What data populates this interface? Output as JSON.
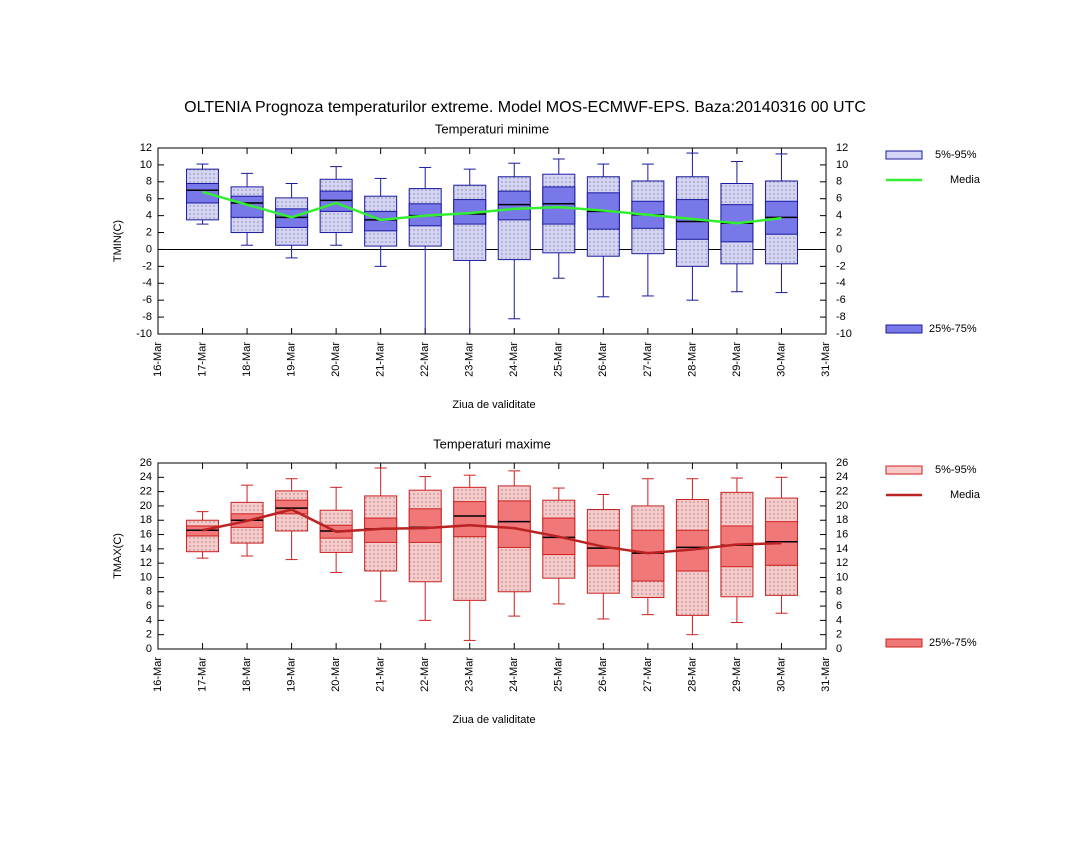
{
  "title": "OLTENIA  Prognoza temperaturilor extreme.  Model MOS-ECMWF-EPS. Baza:20140316 00 UTC",
  "chart_data": [
    {
      "type": "box",
      "subtitle": "Temperaturi minime",
      "subtitle_color": "#1a1aa0",
      "xlabel": "Ziua de validitate",
      "ylabel": "TMIN(C)",
      "categories": [
        "16-Mar",
        "17-Mar",
        "18-Mar",
        "19-Mar",
        "20-Mar",
        "21-Mar",
        "22-Mar",
        "23-Mar",
        "24-Mar",
        "25-Mar",
        "26-Mar",
        "27-Mar",
        "28-Mar",
        "29-Mar",
        "30-Mar",
        "31-Mar"
      ],
      "ylim": [
        -10,
        12
      ],
      "yticks": [
        -10,
        -8,
        -6,
        -4,
        -2,
        0,
        2,
        4,
        6,
        8,
        10,
        12
      ],
      "zero_line": true,
      "whisker_color": "#1a1aa0",
      "min": [
        null,
        3,
        0.5,
        -1,
        0.5,
        -2,
        -10,
        -10,
        -8.2,
        -3.4,
        -5.6,
        -5.5,
        -6,
        -5,
        -5.1,
        null
      ],
      "max": [
        null,
        10.1,
        9,
        7.8,
        9.8,
        8.4,
        9.7,
        9.5,
        10.2,
        10.7,
        10.1,
        10.1,
        11.4,
        10.4,
        11.3,
        null
      ],
      "median": [
        null,
        7,
        5.5,
        3.8,
        5.8,
        3.5,
        4,
        4.2,
        5.3,
        5.4,
        4.5,
        4.1,
        3.3,
        3.1,
        3.8,
        null
      ],
      "series": [
        {
          "name": "5%-95%",
          "color": "#d4d4f6",
          "stroke": "#1a1aa0",
          "low": [
            null,
            3.5,
            2,
            0.5,
            2,
            0.4,
            0.4,
            -1.3,
            -1.2,
            -0.4,
            -0.8,
            -0.5,
            -2,
            -1.7,
            -1.7,
            null
          ],
          "high": [
            null,
            9.5,
            7.4,
            6.1,
            8.3,
            6.3,
            7.2,
            7.6,
            8.6,
            8.9,
            8.6,
            8.1,
            8.6,
            7.8,
            8.1,
            null
          ]
        },
        {
          "name": "25%-75%",
          "color": "#7878e8",
          "stroke": "#1a1aa0",
          "low": [
            null,
            5.5,
            3.8,
            2.6,
            4.5,
            2.2,
            2.8,
            3,
            3.5,
            3,
            2.4,
            2.5,
            1.2,
            0.9,
            1.8,
            null
          ],
          "high": [
            null,
            7.8,
            6.3,
            4.8,
            6.9,
            4.5,
            5.4,
            5.9,
            6.9,
            7.4,
            6.7,
            5.7,
            5.9,
            5.3,
            5.7,
            null
          ]
        },
        {
          "name": "Media",
          "color": "#33ee33",
          "values": [
            null,
            6.8,
            5.3,
            3.8,
            5.5,
            3.5,
            4,
            4.3,
            4.8,
            5,
            4.6,
            4.1,
            3.6,
            3.1,
            3.7,
            null
          ]
        }
      ]
    },
    {
      "type": "box",
      "subtitle": "Temperaturi maxime",
      "subtitle_color": "#dd1111",
      "xlabel": "Ziua de validitate",
      "ylabel": "TMAX(C)",
      "categories": [
        "16-Mar",
        "17-Mar",
        "18-Mar",
        "19-Mar",
        "20-Mar",
        "21-Mar",
        "22-Mar",
        "23-Mar",
        "24-Mar",
        "25-Mar",
        "26-Mar",
        "27-Mar",
        "28-Mar",
        "29-Mar",
        "30-Mar",
        "31-Mar"
      ],
      "ylim": [
        0,
        26
      ],
      "yticks": [
        0,
        2,
        4,
        6,
        8,
        10,
        12,
        14,
        16,
        18,
        20,
        22,
        24,
        26
      ],
      "zero_line": false,
      "whisker_color": "#cc2020",
      "min": [
        null,
        12.7,
        13,
        12.5,
        10.7,
        6.7,
        4,
        1.2,
        4.6,
        6.3,
        4.2,
        4.8,
        2,
        3.7,
        5,
        null
      ],
      "max": [
        null,
        19.2,
        22.9,
        23.8,
        22.6,
        25.3,
        24.1,
        24.3,
        24.9,
        22.5,
        21.6,
        23.8,
        23.8,
        23.9,
        24,
        null
      ],
      "median": [
        null,
        16.6,
        18,
        19.7,
        16.5,
        16.8,
        17,
        18.6,
        17.8,
        15.6,
        14.1,
        13.4,
        14.2,
        14.5,
        15,
        null
      ],
      "series": [
        {
          "name": "5%-95%",
          "color": "#f8caca",
          "stroke": "#cc2020",
          "low": [
            null,
            13.6,
            14.8,
            16.5,
            13.5,
            10.9,
            9.4,
            6.8,
            8,
            9.9,
            7.8,
            7.2,
            4.7,
            7.3,
            7.5,
            null
          ],
          "high": [
            null,
            18,
            20.5,
            22.1,
            19.4,
            21.4,
            22.2,
            22.6,
            22.8,
            20.8,
            19.5,
            20,
            20.9,
            21.9,
            21.1,
            null
          ]
        },
        {
          "name": "25%-75%",
          "color": "#f07878",
          "stroke": "#cc2020",
          "low": [
            null,
            15.8,
            17,
            18.9,
            15.5,
            14.9,
            14.9,
            15.7,
            14.2,
            13.2,
            11.6,
            9.5,
            10.9,
            11.5,
            11.7,
            null
          ],
          "high": [
            null,
            17.2,
            18.9,
            20.8,
            17.3,
            18.3,
            19.6,
            20.6,
            20.7,
            18.3,
            16.6,
            16.6,
            16.6,
            17.2,
            17.8,
            null
          ]
        },
        {
          "name": "Media",
          "color": "#bb2222",
          "values": [
            null,
            16.6,
            17.9,
            19.5,
            16.4,
            16.8,
            16.9,
            17.3,
            16.9,
            15.7,
            14.3,
            13.4,
            13.9,
            14.6,
            14.8,
            null
          ]
        }
      ]
    }
  ]
}
